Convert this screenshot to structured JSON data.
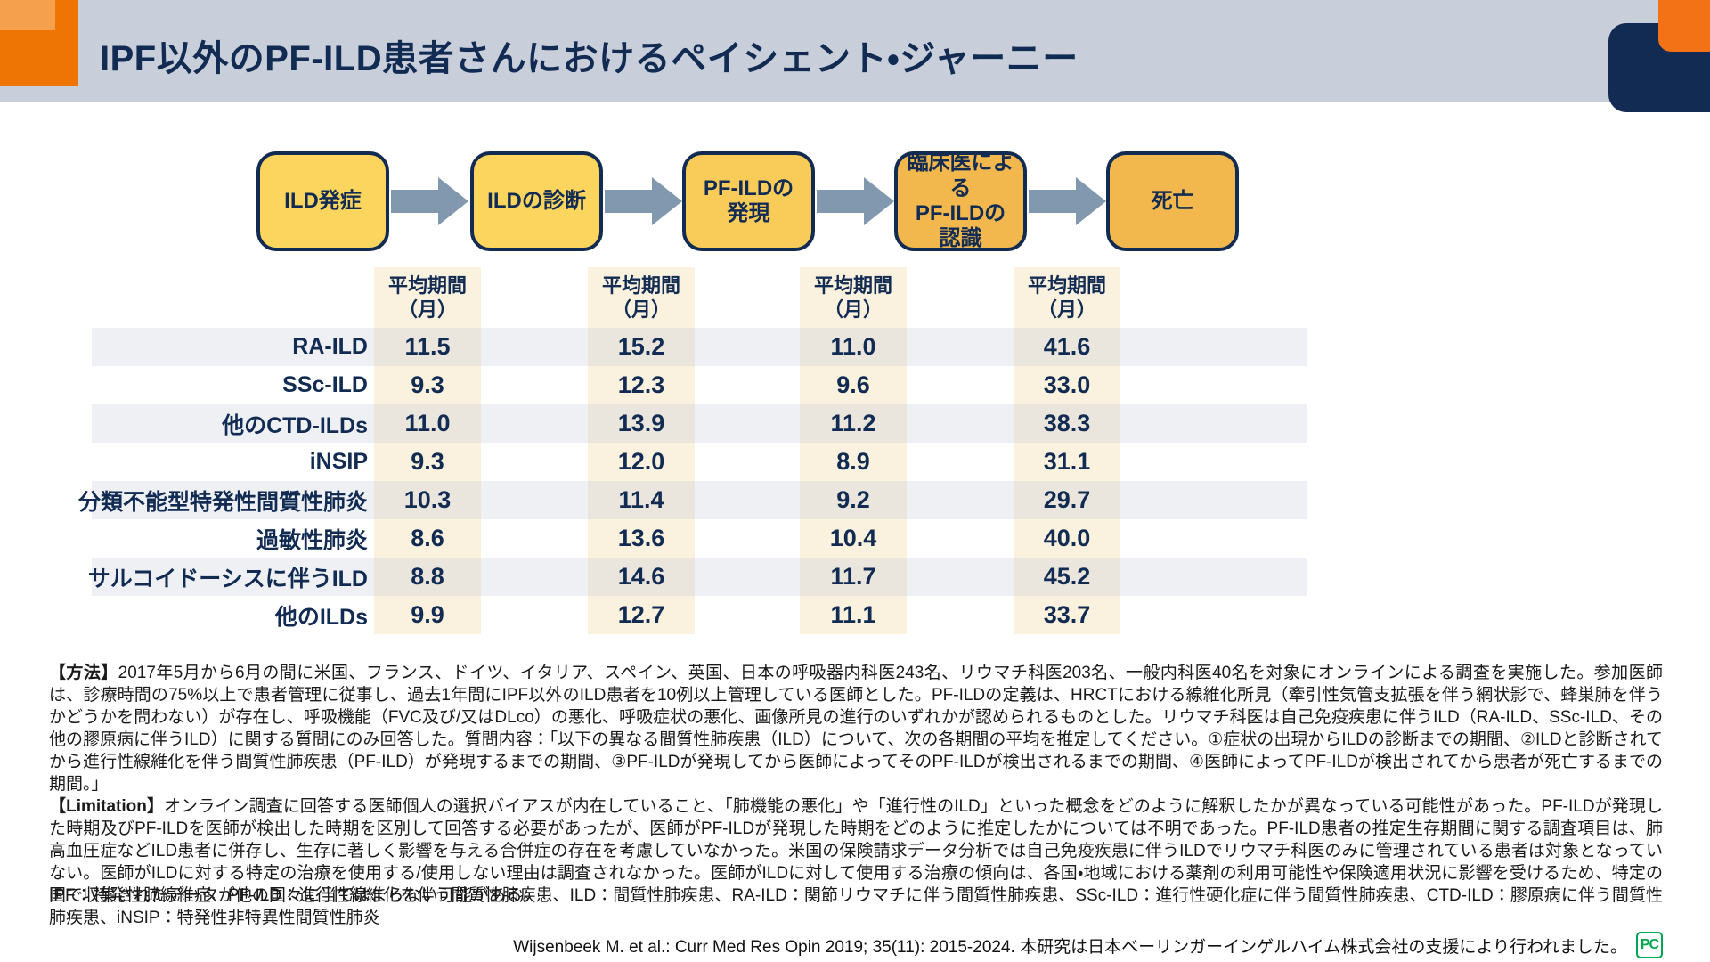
{
  "header": {
    "title": "IPF以外のPF-ILD患者さんにおけるペイシェント・ジャーニー"
  },
  "colors": {
    "header_band": "#C8CEDA",
    "navy": "#122B52",
    "orange_accent": "#EE7504",
    "orange_light": "#F5A04C",
    "arrow": "#8298AE",
    "column_band": "#FAF1DE",
    "logo_green": "#00A650"
  },
  "flow": {
    "steps": [
      {
        "lines": [
          "ILD発症"
        ],
        "color": "#FCD55F"
      },
      {
        "lines": [
          "ILDの診断"
        ],
        "color": "#FCD55F"
      },
      {
        "lines": [
          "PF-ILDの",
          "発現"
        ],
        "color": "#F9CB58"
      },
      {
        "lines": [
          "臨床医による",
          "PF-ILDの",
          "認識"
        ],
        "color": "#F2B84E"
      },
      {
        "lines": [
          "死亡"
        ],
        "color": "#F2B84E"
      }
    ]
  },
  "table": {
    "column_header": "平均期間\n（月）",
    "rows": [
      {
        "label": "RA-ILD",
        "values": [
          "11.5",
          "15.2",
          "11.0",
          "41.6"
        ]
      },
      {
        "label": "SSc-ILD",
        "values": [
          "9.3",
          "12.3",
          "9.6",
          "33.0"
        ]
      },
      {
        "label": "他のCTD-ILDs",
        "values": [
          "11.0",
          "13.9",
          "11.2",
          "38.3"
        ]
      },
      {
        "label": "iNSIP",
        "values": [
          "9.3",
          "12.0",
          "8.9",
          "31.1"
        ]
      },
      {
        "label": "分類不能型特発性間質性肺炎",
        "values": [
          "10.3",
          "11.4",
          "9.2",
          "29.7"
        ]
      },
      {
        "label": "過敏性肺炎",
        "values": [
          "8.6",
          "13.6",
          "10.4",
          "40.0"
        ]
      },
      {
        "label": "サルコイドーシスに伴うILD",
        "values": [
          "8.8",
          "14.6",
          "11.7",
          "45.2"
        ]
      },
      {
        "label": "他のILDs",
        "values": [
          "9.9",
          "12.7",
          "11.1",
          "33.7"
        ]
      }
    ]
  },
  "notes": {
    "method_label": "【方法】",
    "method_text": "2017年5月から6月の間に米国、フランス、ドイツ、イタリア、スペイン、英国、日本の呼吸器内科医243名、リウマチ科医203名、一般内科医40名を対象にオンラインによる調査を実施した。参加医師は、診療時間の75%以上で患者管理に従事し、過去1年間にIPF以外のILD患者を10例以上管理している医師とした。PF-ILDの定義は、HRCTにおける線維化所見（牽引性気管支拡張を伴う網状影で、蜂巣肺を伴うかどうかを問わない）が存在し、呼吸機能（FVC及び/又はDLco）の悪化、呼吸症状の悪化、画像所見の進行のいずれかが認められるものとした。リウマチ科医は自己免疫疾患に伴うILD（RA-ILD、SSc-ILD、その他の膠原病に伴うILD）に関する質問にのみ回答した。質問内容：「以下の異なる間質性肺疾患（ILD）について、次の各期間の平均を推定してください。①症状の出現からILDの診断までの期間、②ILDと診断されてから進行性線維化を伴う間質性肺疾患（PF-ILD）が発現するまでの期間、③PF-ILDが発現してから医師によってそのPF-ILDが検出されるまでの期間、④医師によってPF-ILDが検出されてから患者が死亡するまでの期間。」",
    "limitation_label": "【Limitation】",
    "limitation_text": "オンライン調査に回答する医師個人の選択バイアスが内在していること、「肺機能の悪化」や「進行性のILD」といった概念をどのように解釈したかが異なっている可能性があった。PF-ILDが発現した時期及びPF-ILDを医師が検出した時期を区別して回答する必要があったが、医師がPF-ILDが発現した時期をどのように推定したかについては不明であった。PF-ILD患者の推定生存期間に関する調査項目は、肺高血圧症などILD患者に併存し、生存に著しく影響を与える合併症の存在を考慮していなかった。米国の保険請求データ分析では自己免疫疾患に伴うILDでリウマチ科医のみに管理されている患者は対象となっていない。医師がILDに対する特定の治療を使用する/使用しない理由は調査されなかった。医師がILDに対して使用する治療の傾向は、各国・地域における薬剤の利用可能性や保険適用状況に影響を受けるため、特定の国で収集されたデータが他の国々に当てはまらない可能がある。",
    "abbreviations": "IPF：特発性肺線維症、PF-ILD：進行性線維化を伴う間質性肺疾患、ILD：間質性肺疾患、RA-ILD：関節リウマチに伴う間質性肺疾患、SSc-ILD：進行性硬化症に伴う間質性肺疾患、CTD-ILD：膠原病に伴う間質性肺疾患、iNSIP：特発性非特異性間質性肺炎",
    "citation": "Wijsenbeek M. et al.: Curr Med Res Opin 2019; 35(11): 2015-2024. 本研究は日本ベーリンガーインゲルハイム株式会社の支援により行われました。",
    "logo_text": "PC"
  }
}
